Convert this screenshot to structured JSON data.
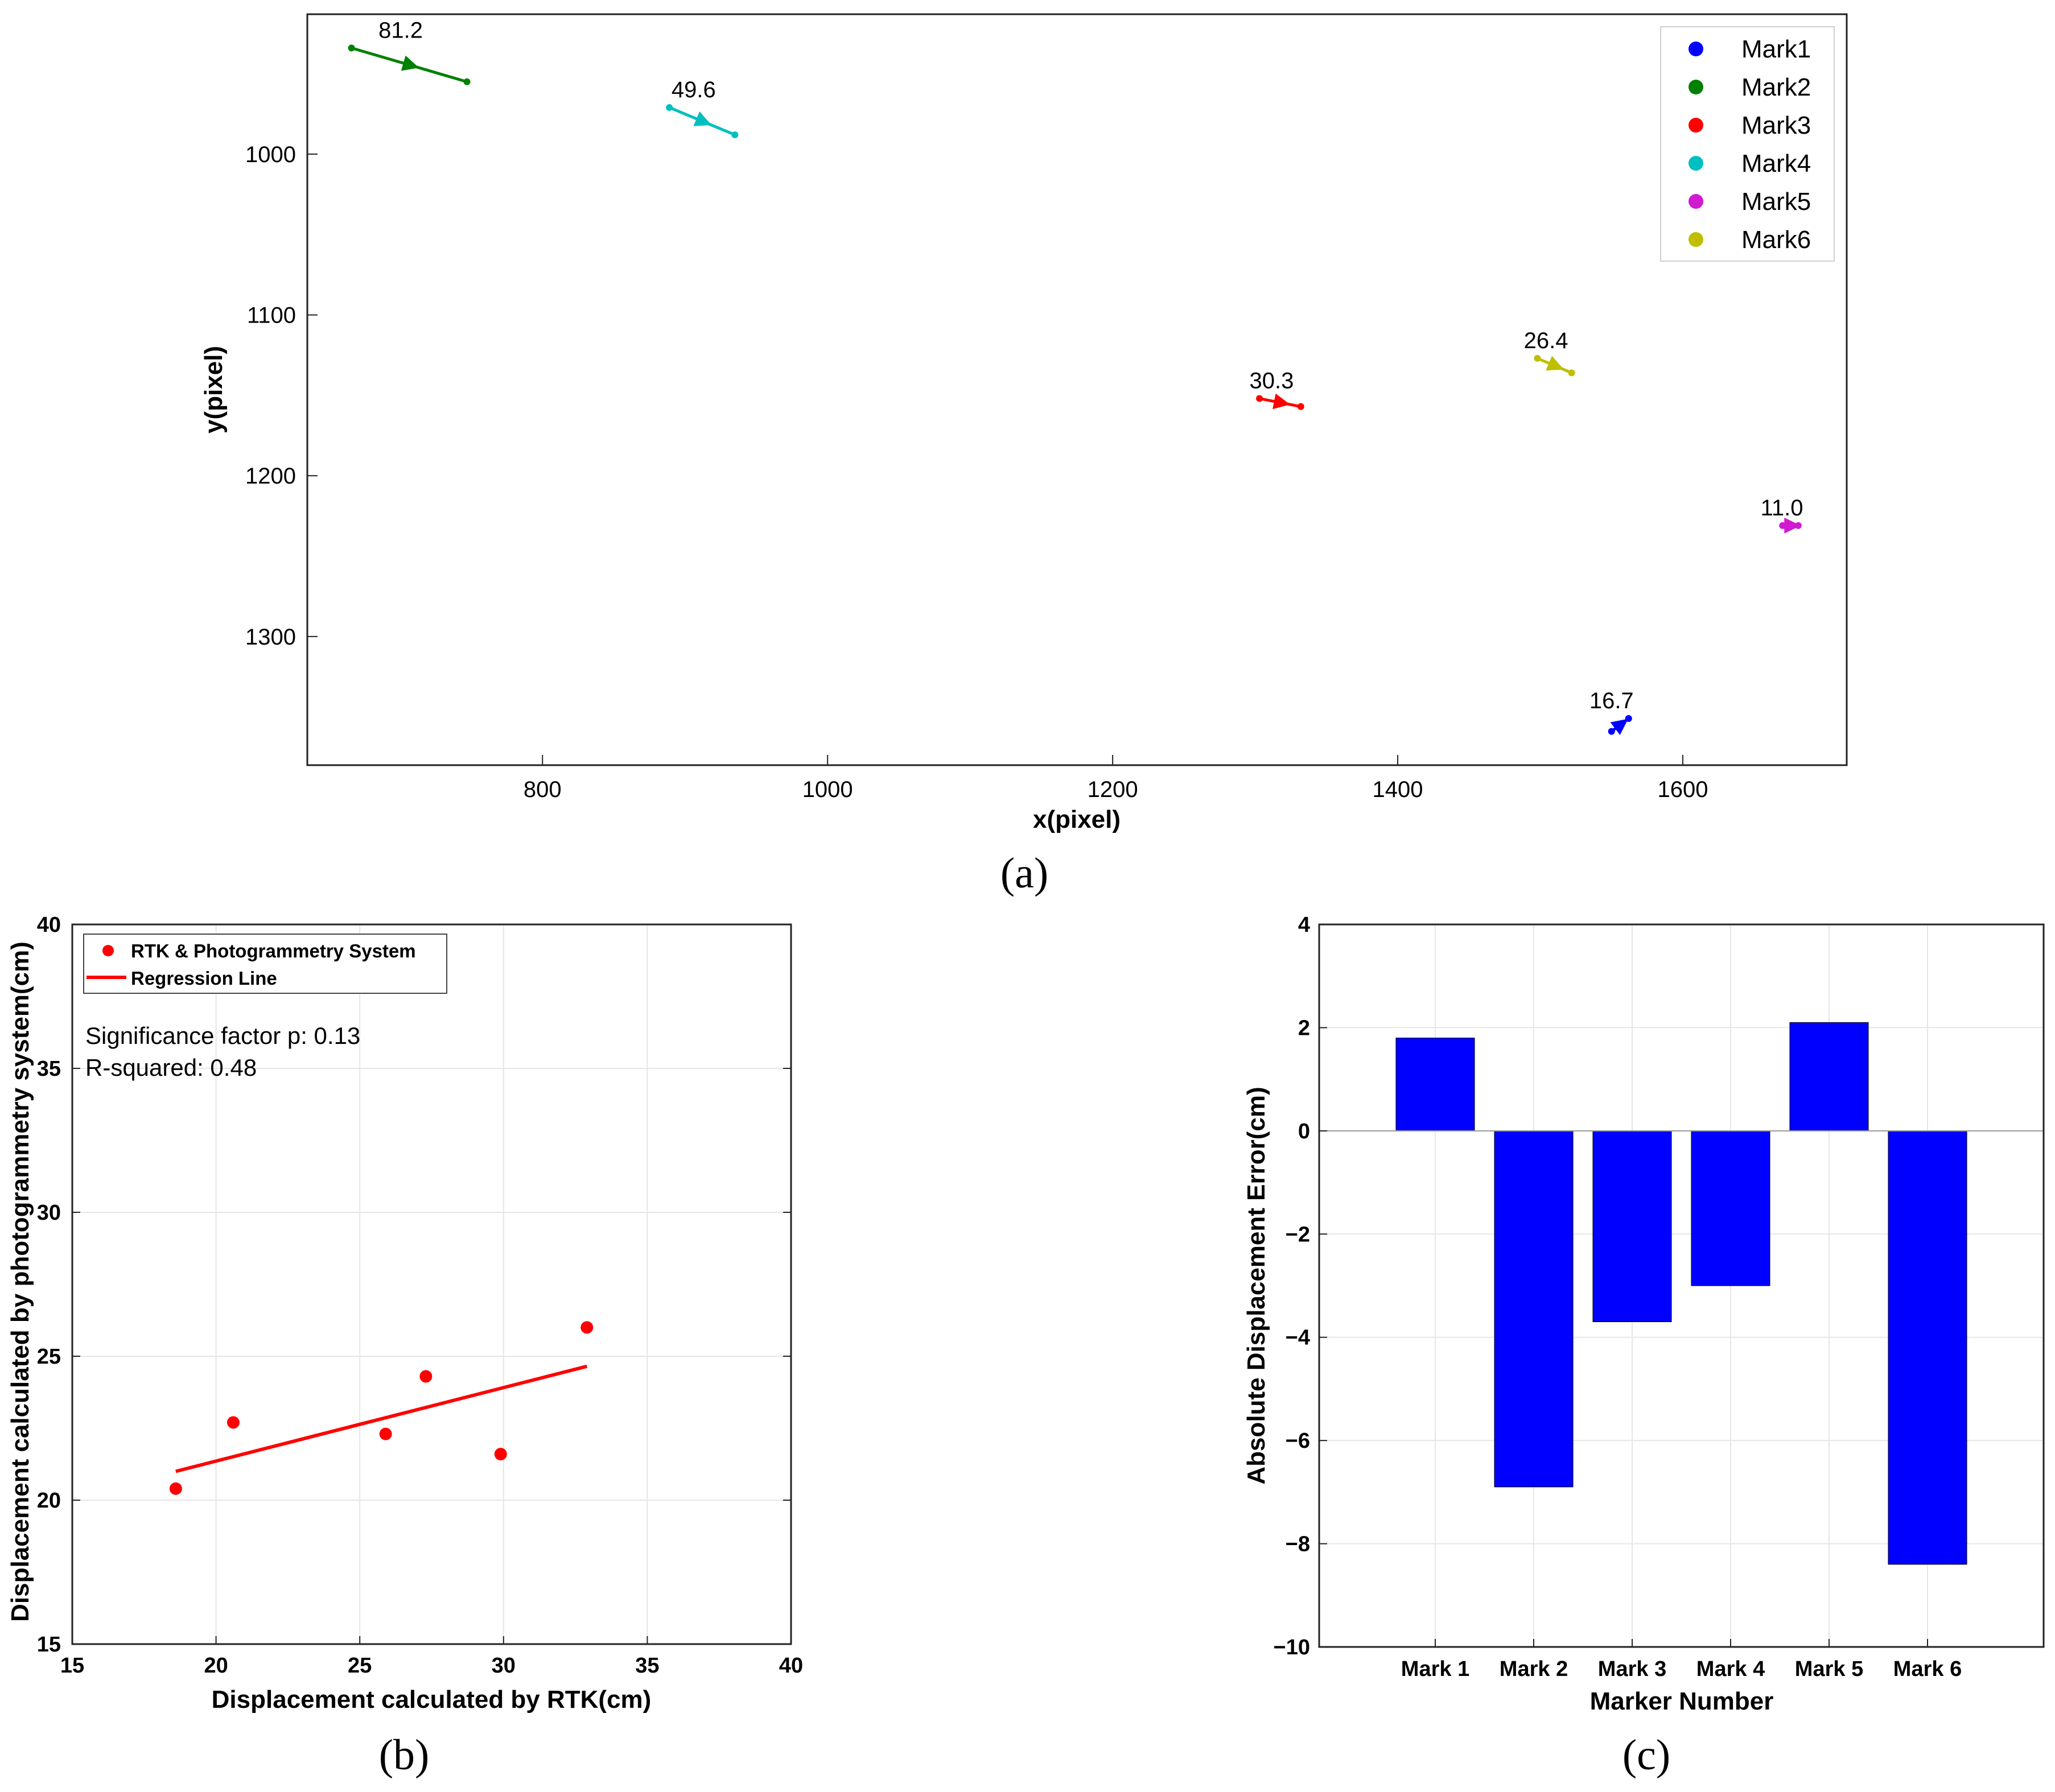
{
  "chart_data": [
    {
      "type": "scatter",
      "panel_label": "(a)",
      "xlabel": "x(pixel)",
      "ylabel": "y(pixel)",
      "xlim": [
        635,
        1715
      ],
      "ylim": [
        1380,
        913
      ],
      "y_inverted": true,
      "xticks": [
        800,
        1000,
        1200,
        1400,
        1600
      ],
      "yticks": [
        1000,
        1100,
        1200,
        1300
      ],
      "grid": false,
      "legend_position": "top-right",
      "series": [
        {
          "name": "Mark1",
          "color": "#0000ff",
          "start": [
            1550,
            1359
          ],
          "end": [
            1562,
            1351
          ],
          "label": "16.7"
        },
        {
          "name": "Mark2",
          "color": "#008000",
          "start": [
            666,
            934
          ],
          "end": [
            747,
            955
          ],
          "label": "81.2"
        },
        {
          "name": "Mark3",
          "color": "#ff0000",
          "start": [
            1303,
            1152
          ],
          "end": [
            1332,
            1157
          ],
          "label": "30.3"
        },
        {
          "name": "Mark4",
          "color": "#00bfbf",
          "start": [
            889,
            971
          ],
          "end": [
            935,
            988
          ],
          "label": "49.6"
        },
        {
          "name": "Mark5",
          "color": "#d11ad1",
          "start": [
            1670,
            1231
          ],
          "end": [
            1681,
            1231
          ],
          "label": "11.0"
        },
        {
          "name": "Mark6",
          "color": "#bfbf00",
          "start": [
            1498,
            1127
          ],
          "end": [
            1522,
            1136
          ],
          "label": "26.4"
        }
      ]
    },
    {
      "type": "scatter",
      "panel_label": "(b)",
      "xlabel": "Displacement calculated by RTK(cm)",
      "ylabel": "Displacement calculated by photogrammetry system(cm)",
      "xlim": [
        15,
        40
      ],
      "ylim": [
        15,
        40
      ],
      "xticks": [
        15,
        20,
        25,
        30,
        35,
        40
      ],
      "yticks": [
        15,
        20,
        25,
        30,
        35,
        40
      ],
      "grid": true,
      "legend_position": "top-left",
      "series": [
        {
          "name": "RTK & Photogrammetry System",
          "color": "#ff0000",
          "points": [
            [
              18.6,
              20.4
            ],
            [
              20.6,
              22.7
            ],
            [
              25.9,
              22.3
            ],
            [
              27.3,
              24.3
            ],
            [
              29.9,
              21.6
            ],
            [
              32.9,
              26.0
            ]
          ]
        },
        {
          "name": "Regression Line",
          "color": "#ff0000",
          "line": [
            [
              18.6,
              21.0
            ],
            [
              32.9,
              24.65
            ]
          ]
        }
      ],
      "annotations": [
        "Significance factor p: 0.13",
        "R-squared: 0.48"
      ]
    },
    {
      "type": "bar",
      "panel_label": "(c)",
      "xlabel": "Marker Number",
      "ylabel": "Absolute Displacement Error(cm)",
      "categories": [
        "Mark 1",
        "Mark 2",
        "Mark 3",
        "Mark 4",
        "Mark 5",
        "Mark 6"
      ],
      "values": [
        1.8,
        -6.9,
        -3.7,
        -3.0,
        2.1,
        -8.4
      ],
      "bar_color": "#0000ff",
      "ylim": [
        -10,
        4
      ],
      "yticks": [
        4,
        2,
        0,
        -2,
        -4,
        -6,
        -8,
        -10
      ],
      "ytick_labels": [
        "4",
        "2",
        "0",
        "−2",
        "−4",
        "−6",
        "−8",
        "−10"
      ],
      "grid": true
    }
  ]
}
